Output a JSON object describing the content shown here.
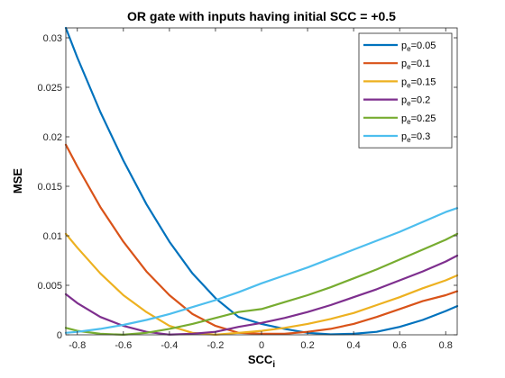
{
  "chart_data": {
    "type": "line",
    "title": "OR gate with inputs having initial SCC = +0.5",
    "xlabel": "SCC",
    "xlabel_subscript": "i",
    "ylabel": "MSE",
    "xlim": [
      -0.85,
      0.85
    ],
    "ylim": [
      0,
      0.031
    ],
    "xticks": [
      -0.8,
      -0.6,
      -0.4,
      -0.2,
      0,
      0.2,
      0.4,
      0.6,
      0.8
    ],
    "xtick_labels": [
      "-0.8",
      "-0.6",
      "-0.4",
      "-0.2",
      "0",
      "0.2",
      "0.4",
      "0.6",
      "0.8"
    ],
    "yticks": [
      0,
      0.005,
      0.01,
      0.015,
      0.02,
      0.025,
      0.03
    ],
    "ytick_labels": [
      "0",
      "0.005",
      "0.01",
      "0.015",
      "0.02",
      "0.025",
      "0.03"
    ],
    "legend_position": "top-right",
    "x": [
      -0.85,
      -0.8,
      -0.7,
      -0.6,
      -0.5,
      -0.4,
      -0.3,
      -0.2,
      -0.1,
      0,
      0.1,
      0.2,
      0.3,
      0.4,
      0.5,
      0.6,
      0.7,
      0.8,
      0.85
    ],
    "series": [
      {
        "label_main": "p",
        "label_sub": "e",
        "label_rest": "=0.05",
        "color": "#0072BD",
        "values": [
          0.031,
          0.028,
          0.0225,
          0.0176,
          0.0132,
          0.0094,
          0.0062,
          0.0037,
          0.0018,
          0.0011,
          0.0006,
          0.0002,
          5e-05,
          0.0001,
          0.0003,
          0.0008,
          0.0015,
          0.0024,
          0.0029
        ]
      },
      {
        "label_main": "p",
        "label_sub": "e",
        "label_rest": "=0.1",
        "color": "#D95319",
        "values": [
          0.0192,
          0.017,
          0.0129,
          0.0094,
          0.0064,
          0.004,
          0.0021,
          0.0009,
          0.0002,
          0.0001,
          0.0001,
          0.0003,
          0.0006,
          0.0011,
          0.0018,
          0.0026,
          0.0034,
          0.004,
          0.0044
        ]
      },
      {
        "label_main": "p",
        "label_sub": "e",
        "label_rest": "=0.15",
        "color": "#EDB120",
        "values": [
          0.0102,
          0.0088,
          0.0062,
          0.004,
          0.0023,
          0.0009,
          0.0002,
          1e-05,
          0.0002,
          0.0004,
          0.0007,
          0.0011,
          0.0016,
          0.0022,
          0.003,
          0.0038,
          0.0047,
          0.0055,
          0.006
        ]
      },
      {
        "label_main": "p",
        "label_sub": "e",
        "label_rest": "=0.2",
        "color": "#7E2F8E",
        "values": [
          0.0041,
          0.0032,
          0.0018,
          0.0009,
          0.0003,
          2e-05,
          0.0001,
          0.0003,
          0.0008,
          0.0012,
          0.0017,
          0.0023,
          0.003,
          0.0038,
          0.0046,
          0.0055,
          0.0064,
          0.0074,
          0.008
        ]
      },
      {
        "label_main": "p",
        "label_sub": "e",
        "label_rest": "=0.25",
        "color": "#77AC30",
        "values": [
          0.0007,
          0.0004,
          0.0001,
          1e-05,
          0.0002,
          0.0006,
          0.0011,
          0.0017,
          0.0023,
          0.0026,
          0.0033,
          0.004,
          0.0048,
          0.0057,
          0.0066,
          0.0076,
          0.0086,
          0.0096,
          0.0102
        ]
      },
      {
        "label_main": "p",
        "label_sub": "e",
        "label_rest": "=0.3",
        "color": "#4DBEEE",
        "values": [
          0.0002,
          0.0003,
          0.0006,
          0.001,
          0.0015,
          0.0021,
          0.0028,
          0.0035,
          0.0043,
          0.0052,
          0.006,
          0.0068,
          0.0077,
          0.0086,
          0.0095,
          0.0104,
          0.0114,
          0.0124,
          0.0128
        ]
      }
    ]
  }
}
